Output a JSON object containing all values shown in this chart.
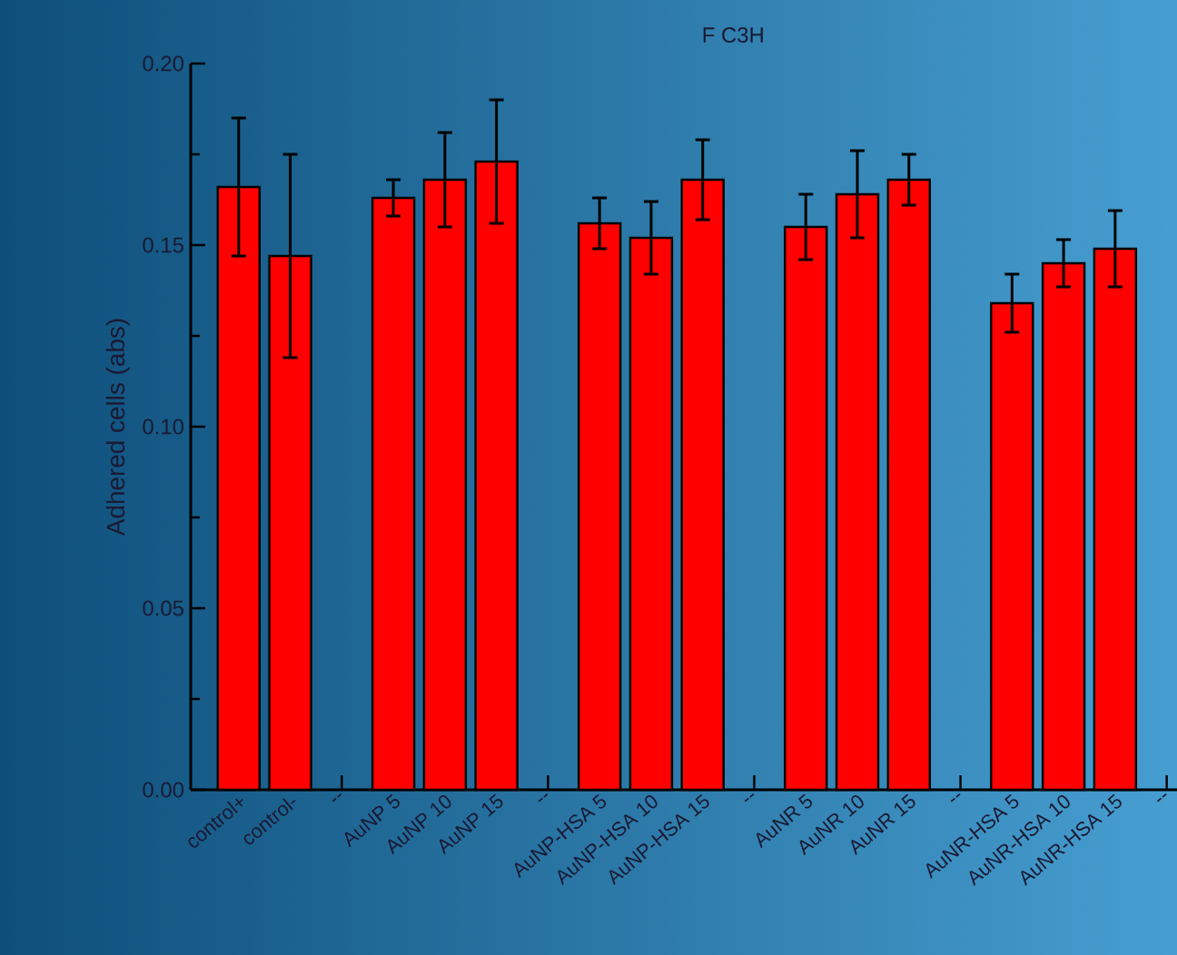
{
  "chart_data": {
    "type": "bar",
    "title": "F C3H",
    "ylabel": "Adhered cells (abs)",
    "categories": [
      "control+",
      "control-",
      "--",
      "AuNP 5",
      "AuNP 10",
      "AuNP 15",
      "--",
      "AuNP-HSA 5",
      "AuNP-HSA 10",
      "AuNP-HSA 15",
      "--",
      "AuNR 5",
      "AuNR 10",
      "AuNR 15",
      "--",
      "AuNR-HSA 5",
      "AuNR-HSA 10",
      "AuNR-HSA 15",
      "--"
    ],
    "values": [
      0.166,
      0.147,
      null,
      0.163,
      0.168,
      0.173,
      null,
      0.156,
      0.152,
      0.168,
      null,
      0.155,
      0.164,
      0.168,
      null,
      0.134,
      0.145,
      0.149,
      null
    ],
    "errors": [
      0.019,
      0.028,
      null,
      0.005,
      0.013,
      0.017,
      null,
      0.007,
      0.01,
      0.011,
      null,
      0.009,
      0.012,
      0.007,
      null,
      0.008,
      0.0065,
      0.0105,
      null
    ],
    "color": "#ff0000",
    "ylim": [
      0,
      0.2
    ],
    "yticks": [
      {
        "value": 0,
        "label": "0.00"
      },
      {
        "value": 0.05,
        "label": "0.05"
      },
      {
        "value": 0.1,
        "label": "0.10"
      },
      {
        "value": 0.15,
        "label": "0.15"
      },
      {
        "value": 0.2,
        "label": "0.20"
      }
    ]
  }
}
